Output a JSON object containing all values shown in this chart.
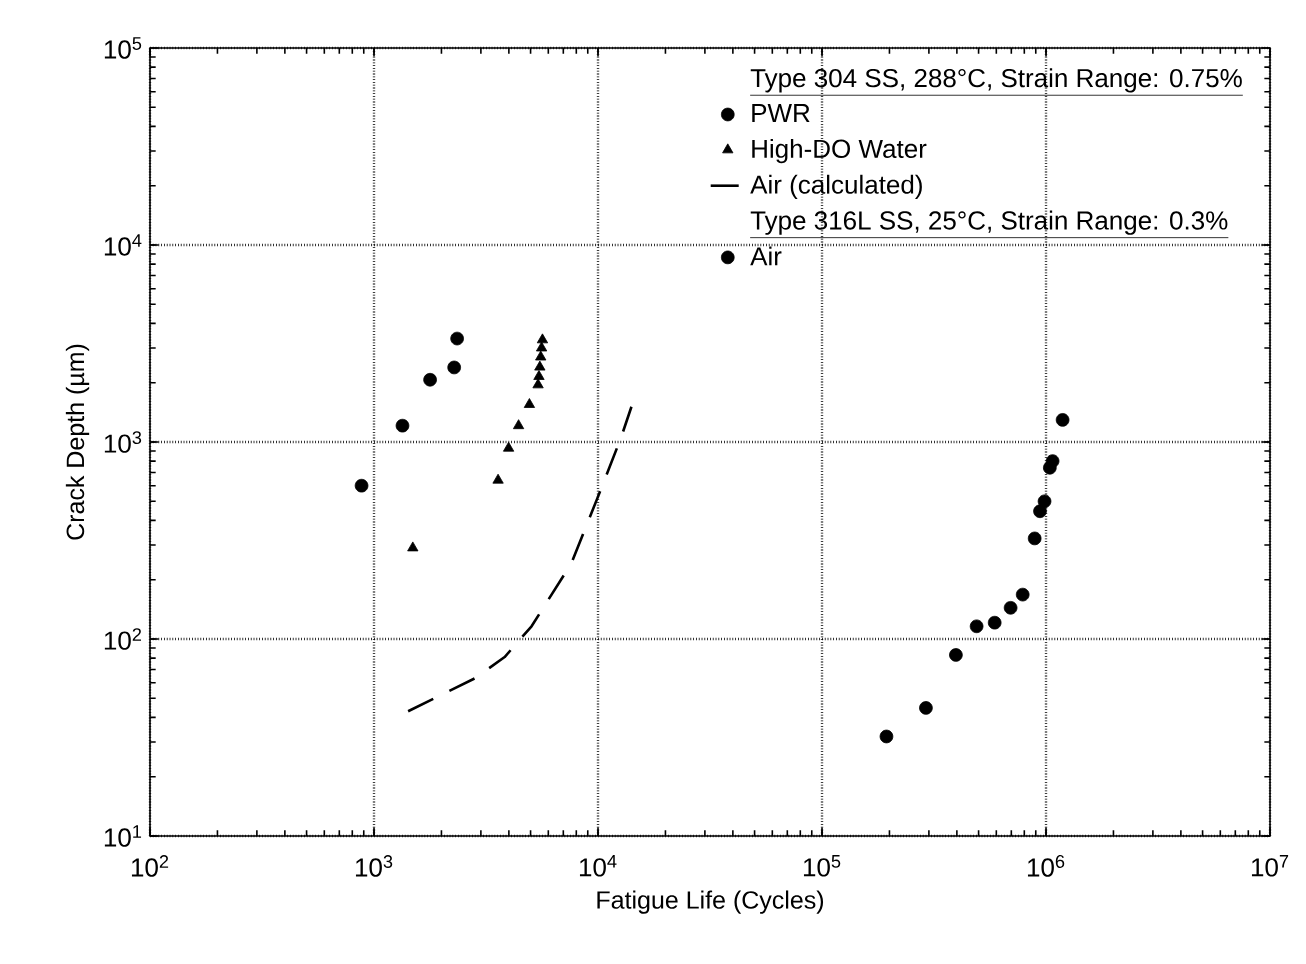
{
  "chart_data": {
    "type": "scatter",
    "xlabel": "Fatigue Life (Cycles)",
    "ylabel": "Crack Depth (µm)",
    "log": "xy",
    "grid": true,
    "legend": "top right",
    "xlim": [
      100,
      10000000
    ],
    "ylim": [
      10,
      100000
    ],
    "xticks": [
      {
        "value": 100,
        "label": "10$^{2}$"
      },
      {
        "value": 1000,
        "label": "10$^{3}$"
      },
      {
        "value": 10000,
        "label": "10$^{4}$"
      },
      {
        "value": 100000,
        "label": "10$^{5}$"
      },
      {
        "value": 1000000,
        "label": "10$^{6}$"
      },
      {
        "value": 10000000,
        "label": "10$^{7}$"
      }
    ],
    "yticks": [
      {
        "value": 10,
        "label": "10$^{1}$"
      },
      {
        "value": 100,
        "label": "10$^{2}$"
      },
      {
        "value": 1000,
        "label": "10$^{3}$"
      },
      {
        "value": 10000,
        "label": "10$^{4}$"
      },
      {
        "value": 100000,
        "label": "10$^{5}$"
      }
    ],
    "annotations": [
      "Type 304 SS, 288°C, Strain Range:  0.75%",
      "Type 316L SS, 25°C, Strain Range:  0.3%"
    ],
    "series": [
      {
        "name": "PWR",
        "marker": "circle",
        "color": "#000000",
        "x": [
          880,
          1340,
          1780,
          2280,
          2350
        ],
        "values": [
          600,
          1210,
          2070,
          2390,
          3350
        ]
      },
      {
        "name": "High-DO Water",
        "marker": "triangle",
        "color": "#000000",
        "x": [
          1490,
          3580,
          3990,
          4420,
          4940,
          5400,
          5450,
          5500,
          5550,
          5600,
          5650
        ],
        "values": [
          290,
          640,
          930,
          1210,
          1550,
          1950,
          2150,
          2400,
          2700,
          3000,
          3300
        ]
      },
      {
        "name": "Air (calculated)",
        "type": "line",
        "marker": "none",
        "line_style": "dashed",
        "color": "#000000",
        "x": [
          1420,
          2810,
          3830,
          5050,
          7600,
          10000,
          12700,
          14100
        ],
        "values": [
          43,
          63,
          81,
          116,
          242,
          528,
          1060,
          1510
        ]
      },
      {
        "name": "Air",
        "marker": "circle",
        "color": "#000000",
        "x": [
          194000,
          291000,
          396000,
          490000,
          590000,
          695000,
          787000,
          890000,
          940000,
          985000,
          1040000,
          1070000,
          1186000
        ],
        "values": [
          32,
          44.7,
          83,
          116,
          121,
          144,
          168,
          324,
          445,
          500,
          740,
          800,
          1295
        ]
      }
    ]
  }
}
